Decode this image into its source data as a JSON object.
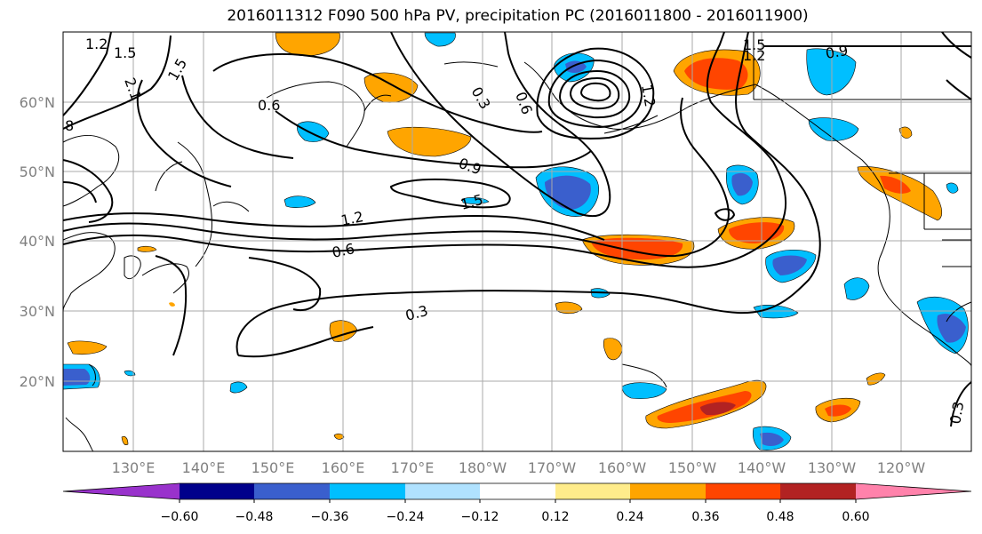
{
  "title": "2016011312 F090 500 hPa PV, precipitation PC (2016011800 - 2016011900)",
  "lat_labels": [
    "60°N",
    "50°N",
    "40°N",
    "30°N",
    "20°N"
  ],
  "lon_labels": [
    "130°E",
    "140°E",
    "150°E",
    "160°E",
    "170°E",
    "180°W",
    "170°W",
    "160°W",
    "150°W",
    "140°W",
    "130°W",
    "120°W"
  ],
  "contour_labels": [
    "1.2",
    "1.5",
    "2.1",
    "1.5",
    "8",
    "0.6",
    "0.3",
    "0.6",
    "1.2",
    "0.9",
    "1.5",
    "1.2",
    "0.6",
    "0.3",
    "1.5",
    "1.2",
    "0.9",
    "0.3"
  ],
  "colorbar": {
    "ticks": [
      "−0.60",
      "−0.48",
      "−0.36",
      "−0.24",
      "−0.12",
      "0.12",
      "0.24",
      "0.36",
      "0.48",
      "0.60"
    ],
    "colors": [
      "#9932cc",
      "#00008b",
      "#3a5fcd",
      "#00bfff",
      "#b0e2ff",
      "#ffffff",
      "#ffec8b",
      "#ffa500",
      "#ff4500",
      "#b22222",
      "#ff82ab"
    ]
  },
  "colors": {
    "contour": "#000000",
    "coast": "#000000",
    "grid": "#aaaaaa",
    "axis_labels": "#808080"
  }
}
